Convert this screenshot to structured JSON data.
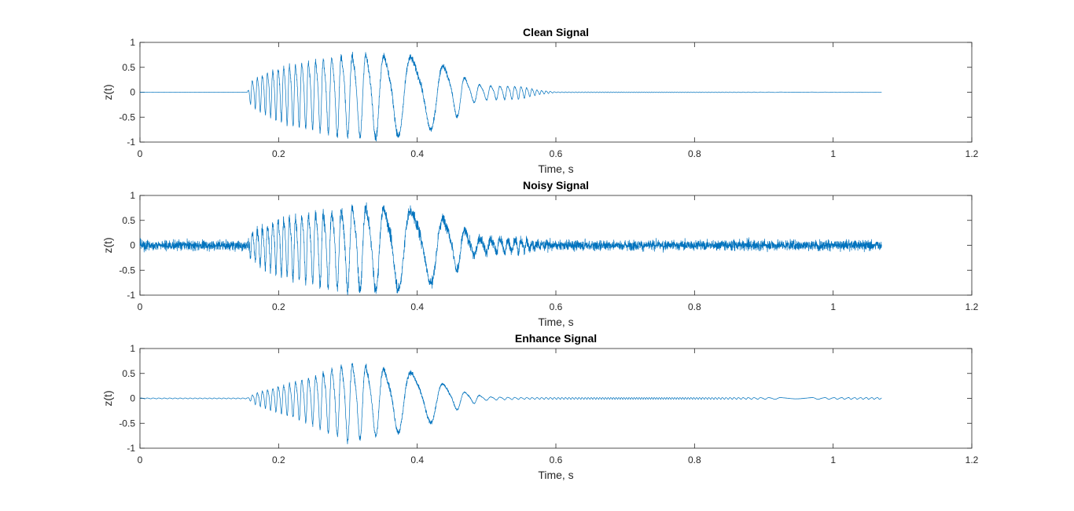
{
  "chart_data": [
    {
      "type": "line",
      "title": "Clean Signal",
      "xlabel": "Time, s",
      "ylabel": "z(t)",
      "xlim": [
        0,
        1.2
      ],
      "ylim": [
        -1,
        1
      ],
      "x_ticks": [
        "0",
        "0.2",
        "0.4",
        "0.6",
        "0.8",
        "1",
        "1.2"
      ],
      "y_ticks": [
        "1",
        "0.5",
        "0",
        "-0.5",
        "-1"
      ],
      "grid": false,
      "color": "#0072BD",
      "duration": 1.07,
      "envelope": {
        "t": [
          0,
          0.155,
          0.16,
          0.175,
          0.2,
          0.25,
          0.3,
          0.35,
          0.4,
          0.45,
          0.48,
          0.5,
          0.55,
          0.575,
          0.6,
          1.07
        ],
        "amp": [
          0.003,
          0.003,
          0.28,
          0.42,
          0.62,
          0.78,
          0.95,
          0.95,
          0.88,
          0.62,
          0.22,
          0.16,
          0.14,
          0.05,
          0.008,
          0.004
        ]
      }
    },
    {
      "type": "line",
      "title": "Noisy Signal",
      "xlabel": "Time, s",
      "ylabel": "z(t)",
      "xlim": [
        0,
        1.2
      ],
      "ylim": [
        -1,
        1
      ],
      "x_ticks": [
        "0",
        "0.2",
        "0.4",
        "0.6",
        "0.8",
        "1",
        "1.2"
      ],
      "y_ticks": [
        "1",
        "0.5",
        "0",
        "-0.5",
        "-1"
      ],
      "grid": false,
      "color": "#0072BD",
      "duration": 1.07,
      "noise_level": 0.18,
      "envelope": {
        "t": [
          0,
          0.155,
          0.16,
          0.175,
          0.2,
          0.25,
          0.3,
          0.35,
          0.4,
          0.45,
          0.48,
          0.5,
          0.55,
          0.575,
          0.6,
          1.07
        ],
        "amp": [
          0.003,
          0.003,
          0.28,
          0.42,
          0.62,
          0.78,
          0.95,
          0.95,
          0.88,
          0.62,
          0.22,
          0.16,
          0.14,
          0.05,
          0.008,
          0.004
        ]
      }
    },
    {
      "type": "line",
      "title": "Enhance Signal",
      "xlabel": "Time, s",
      "ylabel": "z(t)",
      "xlim": [
        0,
        1.2
      ],
      "ylim": [
        -1,
        1
      ],
      "x_ticks": [
        "0",
        "0.2",
        "0.4",
        "0.6",
        "0.8",
        "1",
        "1.2"
      ],
      "y_ticks": [
        "1",
        "0.5",
        "0",
        "-0.5",
        "-1"
      ],
      "grid": false,
      "color": "#0072BD",
      "duration": 1.07,
      "envelope": {
        "t": [
          0,
          0.155,
          0.165,
          0.2,
          0.25,
          0.3,
          0.35,
          0.4,
          0.44,
          0.47,
          0.5,
          0.55,
          1.07
        ],
        "amp": [
          0.01,
          0.01,
          0.12,
          0.3,
          0.55,
          0.9,
          0.75,
          0.65,
          0.35,
          0.15,
          0.04,
          0.02,
          0.02
        ]
      }
    }
  ]
}
